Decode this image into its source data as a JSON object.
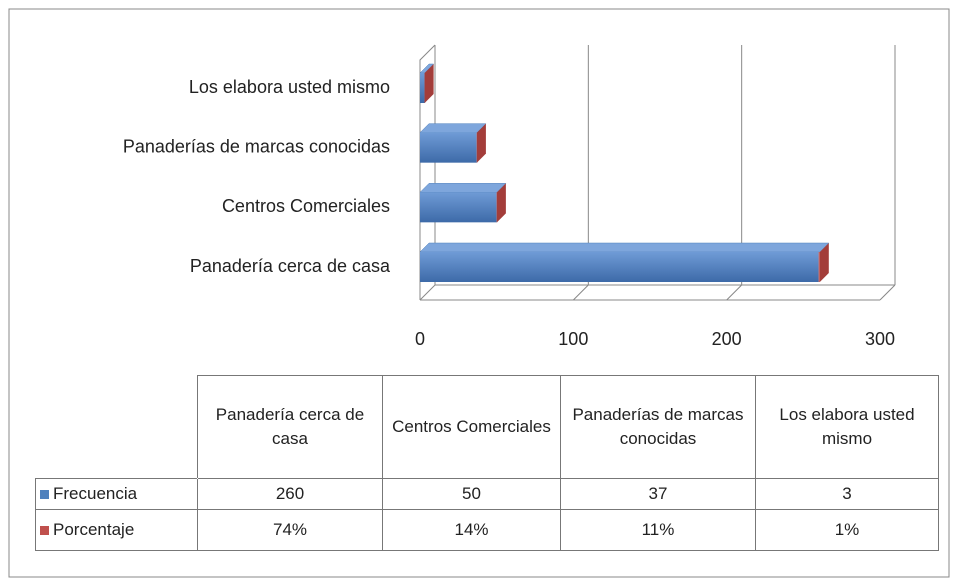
{
  "chart_data": {
    "type": "bar",
    "orientation": "horizontal",
    "three_d": true,
    "categories": [
      "Panadería cerca de casa",
      "Centros Comerciales",
      "Panaderías de marcas conocidas",
      "Los elabora usted mismo"
    ],
    "series": [
      {
        "name": "Frecuencia",
        "color": "#4f81bd",
        "values": [
          260,
          50,
          37,
          3
        ]
      },
      {
        "name": "Porcentaje",
        "color": "#c0504d",
        "values": [
          0.74,
          0.14,
          0.11,
          0.01
        ],
        "value_labels": [
          "74%",
          "14%",
          "11%",
          "1%"
        ]
      }
    ],
    "xlim": [
      0,
      300
    ],
    "xticks": [
      0,
      100,
      200,
      300
    ],
    "grid": true,
    "data_table": true
  }
}
